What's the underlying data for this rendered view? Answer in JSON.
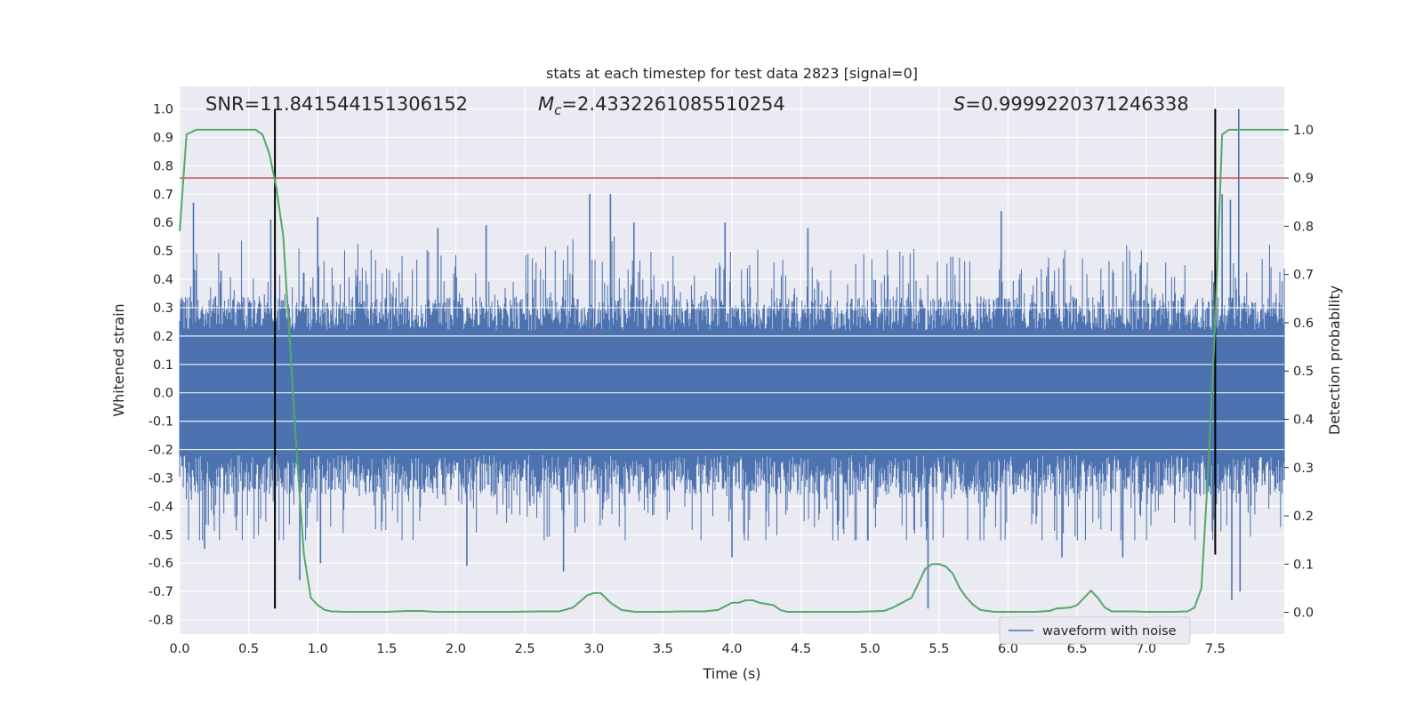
{
  "chart_data": {
    "type": "line",
    "title": "stats at each timestep for test data 2823 [signal=0]",
    "xlabel": "Time (s)",
    "ylabel": "Whitened strain",
    "y2label": "Detection probability",
    "xlim": [
      0.0,
      8.0
    ],
    "ylim": [
      -0.85,
      1.08
    ],
    "y2lim": [
      -0.045,
      1.09
    ],
    "x_ticks": [
      "0.0",
      "0.5",
      "1.0",
      "1.5",
      "2.0",
      "2.5",
      "3.0",
      "3.5",
      "4.0",
      "4.5",
      "5.0",
      "5.5",
      "6.0",
      "6.5",
      "7.0",
      "7.5"
    ],
    "y_ticks": [
      "1.0",
      "0.9",
      "0.8",
      "0.7",
      "0.6",
      "0.5",
      "0.4",
      "0.3",
      "0.2",
      "0.1",
      "0.0",
      "-0.1",
      "-0.2",
      "-0.3",
      "-0.4",
      "-0.5",
      "-0.6",
      "-0.7",
      "-0.8"
    ],
    "y2_ticks": [
      "1.0",
      "0.9",
      "0.8",
      "0.7",
      "0.6",
      "0.5",
      "0.4",
      "0.3",
      "0.2",
      "0.1",
      "0.0"
    ],
    "grid": true,
    "legend": {
      "position": "lower-right",
      "entries": [
        "waveform with noise"
      ]
    },
    "annotations": {
      "snr": "SNR=11.841544151306152",
      "mc_symbol": "M",
      "mc_sub": "c",
      "mc_value": "=2.4332261085510254",
      "s_symbol": "S",
      "s_value": "=0.9999220371246338"
    },
    "series": [
      {
        "name": "waveform with noise",
        "color": "#4c72b0",
        "axis": "left",
        "noise_envelope": {
          "core": [
            -0.22,
            0.22
          ],
          "typical_peak": 0.42,
          "max_positive": 1.0,
          "max_negative": -0.76
        },
        "spikes": [
          {
            "x": 0.1,
            "y": 0.67
          },
          {
            "x": 0.3,
            "y": 0.43
          },
          {
            "x": 0.66,
            "y": 0.61
          },
          {
            "x": 1.0,
            "y": 0.62
          },
          {
            "x": 1.87,
            "y": 0.58
          },
          {
            "x": 2.22,
            "y": 0.59
          },
          {
            "x": 2.97,
            "y": 0.7
          },
          {
            "x": 3.12,
            "y": 0.7
          },
          {
            "x": 3.29,
            "y": 0.6
          },
          {
            "x": 3.95,
            "y": 0.6
          },
          {
            "x": 4.55,
            "y": 0.58
          },
          {
            "x": 5.95,
            "y": 0.64
          },
          {
            "x": 7.55,
            "y": 0.7
          },
          {
            "x": 7.67,
            "y": 1.0
          },
          {
            "x": 7.61,
            "y": 0.68
          },
          {
            "x": 0.87,
            "y": -0.66
          },
          {
            "x": 1.02,
            "y": -0.6
          },
          {
            "x": 2.08,
            "y": -0.61
          },
          {
            "x": 2.78,
            "y": -0.63
          },
          {
            "x": 5.42,
            "y": -0.76
          },
          {
            "x": 6.39,
            "y": -0.58
          },
          {
            "x": 6.83,
            "y": -0.58
          },
          {
            "x": 7.62,
            "y": -0.73
          },
          {
            "x": 7.68,
            "y": -0.7
          },
          {
            "x": 0.18,
            "y": -0.55
          },
          {
            "x": 4.0,
            "y": -0.58
          }
        ]
      },
      {
        "name": "",
        "color": "#55a868",
        "axis": "right",
        "x": [
          0.0,
          0.05,
          0.12,
          0.2,
          0.3,
          0.4,
          0.5,
          0.55,
          0.6,
          0.65,
          0.7,
          0.75,
          0.8,
          0.85,
          0.9,
          0.95,
          1.0,
          1.05,
          1.1,
          1.2,
          1.3,
          1.5,
          1.65,
          1.75,
          1.85,
          2.0,
          2.2,
          2.4,
          2.6,
          2.75,
          2.85,
          2.95,
          3.0,
          3.05,
          3.12,
          3.2,
          3.3,
          3.5,
          3.65,
          3.8,
          3.9,
          4.0,
          4.05,
          4.1,
          4.15,
          4.2,
          4.3,
          4.35,
          4.4,
          4.5,
          4.7,
          4.9,
          5.1,
          5.15,
          5.2,
          5.3,
          5.35,
          5.4,
          5.45,
          5.5,
          5.55,
          5.6,
          5.65,
          5.7,
          5.75,
          5.8,
          5.9,
          6.0,
          6.2,
          6.3,
          6.35,
          6.45,
          6.5,
          6.55,
          6.6,
          6.65,
          6.7,
          6.75,
          6.8,
          6.9,
          7.0,
          7.2,
          7.3,
          7.35,
          7.4,
          7.45,
          7.5,
          7.55,
          7.6,
          7.65,
          7.7,
          8.0
        ],
        "y": [
          0.79,
          0.99,
          1.0,
          1.0,
          1.0,
          1.0,
          1.0,
          1.0,
          0.99,
          0.95,
          0.88,
          0.78,
          0.55,
          0.32,
          0.12,
          0.03,
          0.015,
          0.005,
          0.002,
          0.001,
          0.001,
          0.001,
          0.003,
          0.003,
          0.001,
          0.001,
          0.001,
          0.001,
          0.002,
          0.002,
          0.01,
          0.035,
          0.04,
          0.04,
          0.02,
          0.005,
          0.001,
          0.001,
          0.002,
          0.002,
          0.005,
          0.02,
          0.02,
          0.025,
          0.025,
          0.02,
          0.015,
          0.005,
          0.001,
          0.001,
          0.001,
          0.001,
          0.003,
          0.008,
          0.015,
          0.03,
          0.06,
          0.09,
          0.1,
          0.1,
          0.095,
          0.08,
          0.05,
          0.03,
          0.015,
          0.005,
          0.001,
          0.001,
          0.001,
          0.003,
          0.008,
          0.01,
          0.015,
          0.03,
          0.045,
          0.03,
          0.01,
          0.002,
          0.002,
          0.002,
          0.001,
          0.001,
          0.002,
          0.01,
          0.05,
          0.3,
          0.6,
          0.99,
          1.0,
          1.0,
          1.0,
          1.0
        ]
      }
    ],
    "hlines": [
      {
        "axis": "right",
        "y": 0.9,
        "color": "#c44e52"
      }
    ],
    "vlines": [
      {
        "x": 0.69,
        "y": [
          -0.76,
          1.0
        ]
      },
      {
        "x": 7.5,
        "y": [
          -0.57,
          1.0
        ]
      }
    ]
  }
}
